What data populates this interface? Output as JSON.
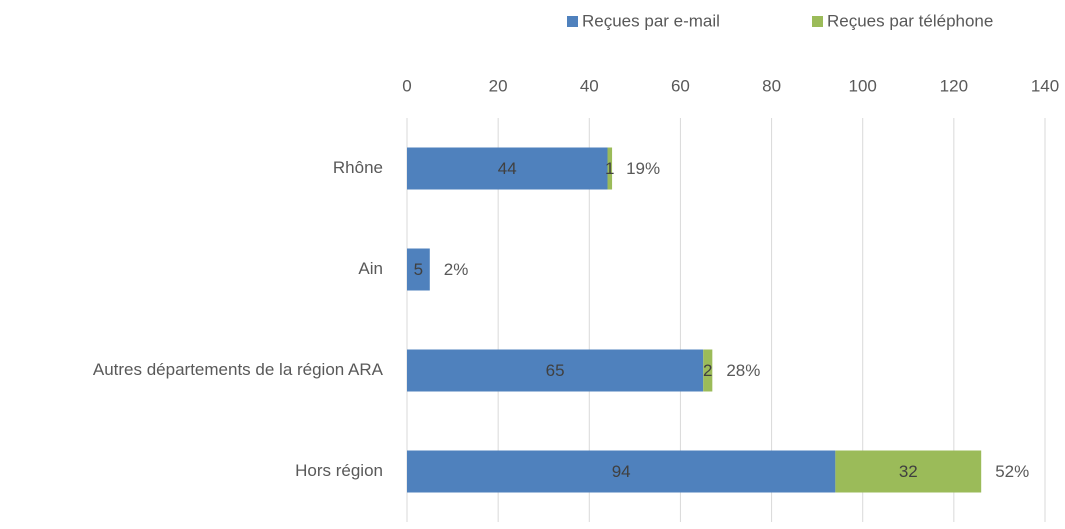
{
  "chart_data": {
    "type": "bar",
    "orientation": "horizontal",
    "stacked": true,
    "categories": [
      "Rhône",
      "Ain",
      "Autres départements de la région ARA",
      "Hors région"
    ],
    "series": [
      {
        "name": "Reçues par e-mail",
        "color": "#4f81bd",
        "values": [
          44,
          5,
          65,
          94
        ]
      },
      {
        "name": "Reçues par téléphone",
        "color": "#9bbb59",
        "values": [
          1,
          0,
          2,
          32
        ]
      }
    ],
    "annotations": [
      "19%",
      "2%",
      "28%",
      "52%"
    ],
    "xlim": [
      0,
      140
    ],
    "xticks": [
      0,
      20,
      40,
      60,
      80,
      100,
      120,
      140
    ],
    "grid": true,
    "legend": "top"
  }
}
